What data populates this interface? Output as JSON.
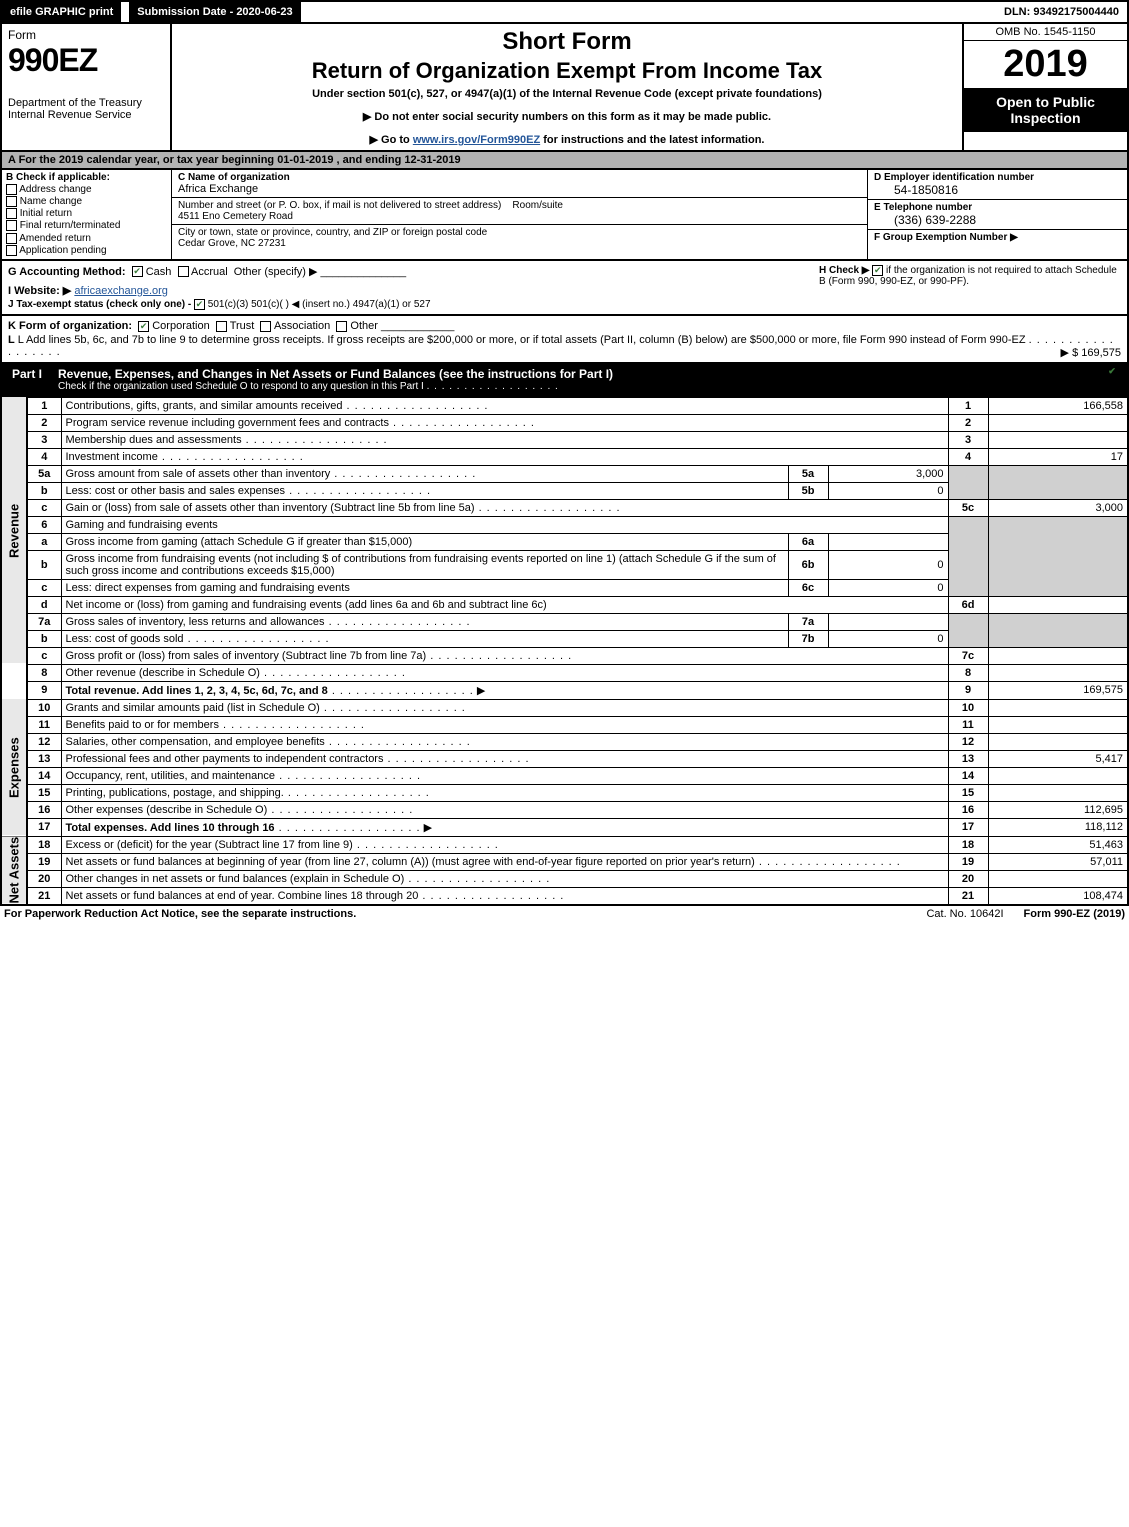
{
  "topbar": {
    "efile_label": "efile GRAPHIC print",
    "submission_label": "Submission Date - 2020-06-23",
    "dln_label": "DLN: 93492175004440"
  },
  "header": {
    "form_label": "Form",
    "form_number": "990EZ",
    "dept": "Department of the Treasury",
    "irs": "Internal Revenue Service",
    "short": "Short Form",
    "title": "Return of Organization Exempt From Income Tax",
    "sub": "Under section 501(c), 527, or 4947(a)(1) of the Internal Revenue Code (except private foundations)",
    "note1": "▶ Do not enter social security numbers on this form as it may be made public.",
    "note2_pre": "▶ Go to ",
    "note2_link": "www.irs.gov/Form990EZ",
    "note2_post": " for instructions and the latest information.",
    "omb": "OMB No. 1545-1150",
    "year": "2019",
    "open": "Open to Public Inspection"
  },
  "taxyear": "A For the 2019 calendar year, or tax year beginning 01-01-2019 , and ending 12-31-2019",
  "entity": {
    "b_label": "B Check if applicable:",
    "checks": [
      "Address change",
      "Name change",
      "Initial return",
      "Final return/terminated",
      "Amended return",
      "Application pending"
    ],
    "c_label": "C Name of organization",
    "org_name": "Africa Exchange",
    "street_label": "Number and street (or P. O. box, if mail is not delivered to street address)",
    "room_label": "Room/suite",
    "street": "4511 Eno Cemetery Road",
    "city_label": "City or town, state or province, country, and ZIP or foreign postal code",
    "city": "Cedar Grove, NC  27231",
    "d_label": "D Employer identification number",
    "ein": "54-1850816",
    "e_label": "E Telephone number",
    "phone": "(336) 639-2288",
    "f_label": "F Group Exemption Number  ▶"
  },
  "method": {
    "g_label": "G Accounting Method:",
    "g_cash": "Cash",
    "g_accrual": "Accrual",
    "g_other": "Other (specify) ▶",
    "h_label": "H  Check ▶",
    "h_text": " if the organization is not required to attach Schedule B (Form 990, 990-EZ, or 990-PF).",
    "i_label": "I Website: ▶",
    "website": "africaexchange.org",
    "j_label": "J Tax-exempt status (check only one) -",
    "j_opts": "501(c)(3)    501(c)(  ) ◀ (insert no.)    4947(a)(1) or    527"
  },
  "kl": {
    "k_label": "K Form of organization:",
    "k_opts": [
      "Corporation",
      "Trust",
      "Association",
      "Other"
    ],
    "l_text": "L Add lines 5b, 6c, and 7b to line 9 to determine gross receipts. If gross receipts are $200,000 or more, or if total assets (Part II, column (B) below) are $500,000 or more, file Form 990 instead of Form 990-EZ",
    "l_arrow": "▶ $ 169,575"
  },
  "part1": {
    "label": "Part I",
    "title": "Revenue, Expenses, and Changes in Net Assets or Fund Balances (see the instructions for Part I)",
    "sub": "Check if the organization used Schedule O to respond to any question in this Part I"
  },
  "sidelabels": {
    "rev": "Revenue",
    "exp": "Expenses",
    "na": "Net Assets"
  },
  "lines": {
    "l1": {
      "ln": "1",
      "desc": "Contributions, gifts, grants, and similar amounts received",
      "num": "1",
      "val": "166,558"
    },
    "l2": {
      "ln": "2",
      "desc": "Program service revenue including government fees and contracts",
      "num": "2",
      "val": ""
    },
    "l3": {
      "ln": "3",
      "desc": "Membership dues and assessments",
      "num": "3",
      "val": ""
    },
    "l4": {
      "ln": "4",
      "desc": "Investment income",
      "num": "4",
      "val": "17"
    },
    "l5a": {
      "ln": "5a",
      "desc": "Gross amount from sale of assets other than inventory",
      "sm": "5a",
      "smv": "3,000"
    },
    "l5b": {
      "ln": "b",
      "desc": "Less: cost or other basis and sales expenses",
      "sm": "5b",
      "smv": "0"
    },
    "l5c": {
      "ln": "c",
      "desc": "Gain or (loss) from sale of assets other than inventory (Subtract line 5b from line 5a)",
      "num": "5c",
      "val": "3,000"
    },
    "l6": {
      "ln": "6",
      "desc": "Gaming and fundraising events"
    },
    "l6a": {
      "ln": "a",
      "desc": "Gross income from gaming (attach Schedule G if greater than $15,000)",
      "sm": "6a",
      "smv": ""
    },
    "l6b": {
      "ln": "b",
      "desc": "Gross income from fundraising events (not including $                              of contributions from fundraising events reported on line 1) (attach Schedule G if the sum of such gross income and contributions exceeds $15,000)",
      "sm": "6b",
      "smv": "0"
    },
    "l6c": {
      "ln": "c",
      "desc": "Less: direct expenses from gaming and fundraising events",
      "sm": "6c",
      "smv": "0"
    },
    "l6d": {
      "ln": "d",
      "desc": "Net income or (loss) from gaming and fundraising events (add lines 6a and 6b and subtract line 6c)",
      "num": "6d",
      "val": ""
    },
    "l7a": {
      "ln": "7a",
      "desc": "Gross sales of inventory, less returns and allowances",
      "sm": "7a",
      "smv": ""
    },
    "l7b": {
      "ln": "b",
      "desc": "Less: cost of goods sold",
      "sm": "7b",
      "smv": "0"
    },
    "l7c": {
      "ln": "c",
      "desc": "Gross profit or (loss) from sales of inventory (Subtract line 7b from line 7a)",
      "num": "7c",
      "val": ""
    },
    "l8": {
      "ln": "8",
      "desc": "Other revenue (describe in Schedule O)",
      "num": "8",
      "val": ""
    },
    "l9": {
      "ln": "9",
      "desc": "Total revenue. Add lines 1, 2, 3, 4, 5c, 6d, 7c, and 8",
      "num": "9",
      "val": "169,575",
      "bold": true
    },
    "l10": {
      "ln": "10",
      "desc": "Grants and similar amounts paid (list in Schedule O)",
      "num": "10",
      "val": ""
    },
    "l11": {
      "ln": "11",
      "desc": "Benefits paid to or for members",
      "num": "11",
      "val": ""
    },
    "l12": {
      "ln": "12",
      "desc": "Salaries, other compensation, and employee benefits",
      "num": "12",
      "val": ""
    },
    "l13": {
      "ln": "13",
      "desc": "Professional fees and other payments to independent contractors",
      "num": "13",
      "val": "5,417"
    },
    "l14": {
      "ln": "14",
      "desc": "Occupancy, rent, utilities, and maintenance",
      "num": "14",
      "val": ""
    },
    "l15": {
      "ln": "15",
      "desc": "Printing, publications, postage, and shipping.",
      "num": "15",
      "val": ""
    },
    "l16": {
      "ln": "16",
      "desc": "Other expenses (describe in Schedule O)",
      "num": "16",
      "val": "112,695"
    },
    "l17": {
      "ln": "17",
      "desc": "Total expenses. Add lines 10 through 16",
      "num": "17",
      "val": "118,112",
      "bold": true
    },
    "l18": {
      "ln": "18",
      "desc": "Excess or (deficit) for the year (Subtract line 17 from line 9)",
      "num": "18",
      "val": "51,463"
    },
    "l19": {
      "ln": "19",
      "desc": "Net assets or fund balances at beginning of year (from line 27, column (A)) (must agree with end-of-year figure reported on prior year's return)",
      "num": "19",
      "val": "57,011"
    },
    "l20": {
      "ln": "20",
      "desc": "Other changes in net assets or fund balances (explain in Schedule O)",
      "num": "20",
      "val": ""
    },
    "l21": {
      "ln": "21",
      "desc": "Net assets or fund balances at end of year. Combine lines 18 through 20",
      "num": "21",
      "val": "108,474"
    }
  },
  "footer": {
    "left": "For Paperwork Reduction Act Notice, see the separate instructions.",
    "center": "Cat. No. 10642I",
    "right": "Form 990-EZ (2019)"
  },
  "colors": {
    "header_bg": "#000000",
    "grey_bg": "#b3b3b3",
    "cell_grey": "#d0d0d0",
    "link": "#245699",
    "check_green": "#3a7a3a"
  }
}
